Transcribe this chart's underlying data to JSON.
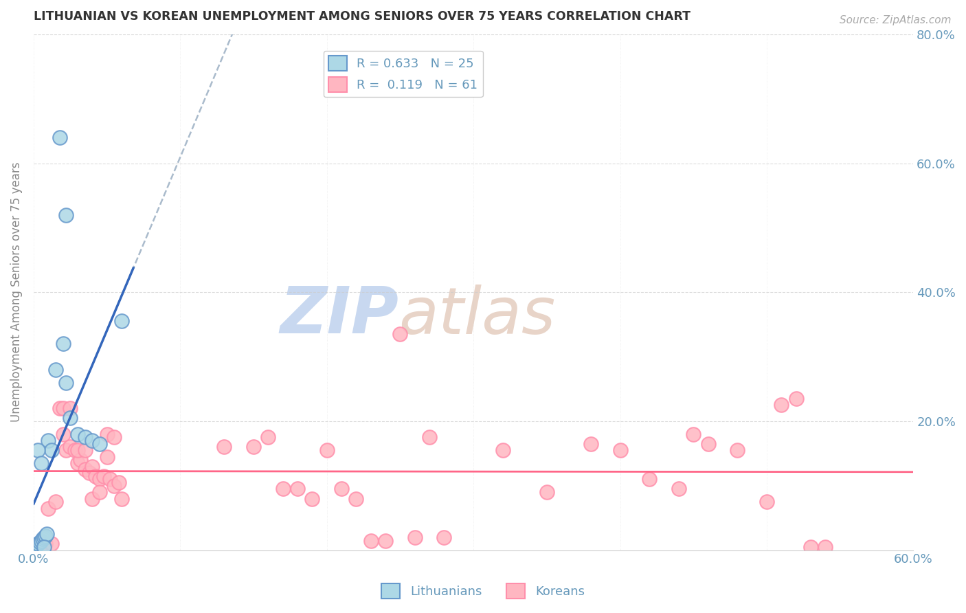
{
  "title": "LITHUANIAN VS KOREAN UNEMPLOYMENT AMONG SENIORS OVER 75 YEARS CORRELATION CHART",
  "source": "Source: ZipAtlas.com",
  "ylabel": "Unemployment Among Seniors over 75 years",
  "xlim": [
    0.0,
    0.6
  ],
  "ylim": [
    0.0,
    0.8
  ],
  "xtick_positions": [
    0.0,
    0.1,
    0.2,
    0.3,
    0.4,
    0.5,
    0.6
  ],
  "xticklabels": [
    "0.0%",
    "",
    "",
    "",
    "",
    "",
    "60.0%"
  ],
  "ytick_positions": [
    0.0,
    0.2,
    0.4,
    0.6,
    0.8
  ],
  "yticklabels": [
    "",
    "20.0%",
    "40.0%",
    "60.0%",
    "80.0%"
  ],
  "watermark_zip": "ZIP",
  "watermark_atlas": "atlas",
  "lit_color_edge": "#6699CC",
  "lit_color_fill": "#ADD8E6",
  "kor_color_edge": "#FF8FAB",
  "kor_color_fill": "#FFB6C1",
  "lit_line_color": "#3366BB",
  "kor_line_color": "#FF6688",
  "dash_color": "#AABBCC",
  "background_color": "#FFFFFF",
  "grid_color": "#CCCCCC",
  "axis_color": "#6699BB",
  "title_color": "#333333",
  "lit_points": [
    [
      0.001,
      0.005
    ],
    [
      0.002,
      0.008
    ],
    [
      0.003,
      0.01
    ],
    [
      0.004,
      0.012
    ],
    [
      0.005,
      0.015
    ],
    [
      0.006,
      0.018
    ],
    [
      0.007,
      0.02
    ],
    [
      0.008,
      0.022
    ],
    [
      0.009,
      0.025
    ],
    [
      0.01,
      0.17
    ],
    [
      0.012,
      0.155
    ],
    [
      0.015,
      0.28
    ],
    [
      0.02,
      0.32
    ],
    [
      0.022,
      0.26
    ],
    [
      0.025,
      0.205
    ],
    [
      0.03,
      0.18
    ],
    [
      0.035,
      0.175
    ],
    [
      0.04,
      0.17
    ],
    [
      0.045,
      0.165
    ],
    [
      0.018,
      0.64
    ],
    [
      0.022,
      0.52
    ],
    [
      0.06,
      0.355
    ],
    [
      0.003,
      0.155
    ],
    [
      0.005,
      0.135
    ],
    [
      0.007,
      0.005
    ]
  ],
  "kor_points": [
    [
      0.005,
      0.008
    ],
    [
      0.008,
      0.01
    ],
    [
      0.01,
      0.065
    ],
    [
      0.012,
      0.01
    ],
    [
      0.015,
      0.075
    ],
    [
      0.018,
      0.22
    ],
    [
      0.02,
      0.18
    ],
    [
      0.022,
      0.155
    ],
    [
      0.025,
      0.16
    ],
    [
      0.028,
      0.155
    ],
    [
      0.03,
      0.135
    ],
    [
      0.032,
      0.14
    ],
    [
      0.035,
      0.125
    ],
    [
      0.038,
      0.12
    ],
    [
      0.04,
      0.13
    ],
    [
      0.042,
      0.115
    ],
    [
      0.045,
      0.11
    ],
    [
      0.048,
      0.115
    ],
    [
      0.05,
      0.145
    ],
    [
      0.052,
      0.11
    ],
    [
      0.055,
      0.1
    ],
    [
      0.058,
      0.105
    ],
    [
      0.06,
      0.08
    ],
    [
      0.02,
      0.22
    ],
    [
      0.025,
      0.22
    ],
    [
      0.03,
      0.155
    ],
    [
      0.035,
      0.155
    ],
    [
      0.04,
      0.08
    ],
    [
      0.045,
      0.09
    ],
    [
      0.05,
      0.18
    ],
    [
      0.055,
      0.175
    ],
    [
      0.25,
      0.335
    ],
    [
      0.27,
      0.175
    ],
    [
      0.32,
      0.155
    ],
    [
      0.35,
      0.09
    ],
    [
      0.38,
      0.165
    ],
    [
      0.4,
      0.155
    ],
    [
      0.42,
      0.11
    ],
    [
      0.44,
      0.095
    ],
    [
      0.45,
      0.18
    ],
    [
      0.46,
      0.165
    ],
    [
      0.48,
      0.155
    ],
    [
      0.5,
      0.075
    ],
    [
      0.13,
      0.16
    ],
    [
      0.15,
      0.16
    ],
    [
      0.16,
      0.175
    ],
    [
      0.17,
      0.095
    ],
    [
      0.18,
      0.095
    ],
    [
      0.19,
      0.08
    ],
    [
      0.2,
      0.155
    ],
    [
      0.21,
      0.095
    ],
    [
      0.22,
      0.08
    ],
    [
      0.23,
      0.015
    ],
    [
      0.24,
      0.015
    ],
    [
      0.26,
      0.02
    ],
    [
      0.28,
      0.02
    ],
    [
      0.51,
      0.225
    ],
    [
      0.52,
      0.235
    ],
    [
      0.53,
      0.005
    ],
    [
      0.54,
      0.005
    ]
  ]
}
